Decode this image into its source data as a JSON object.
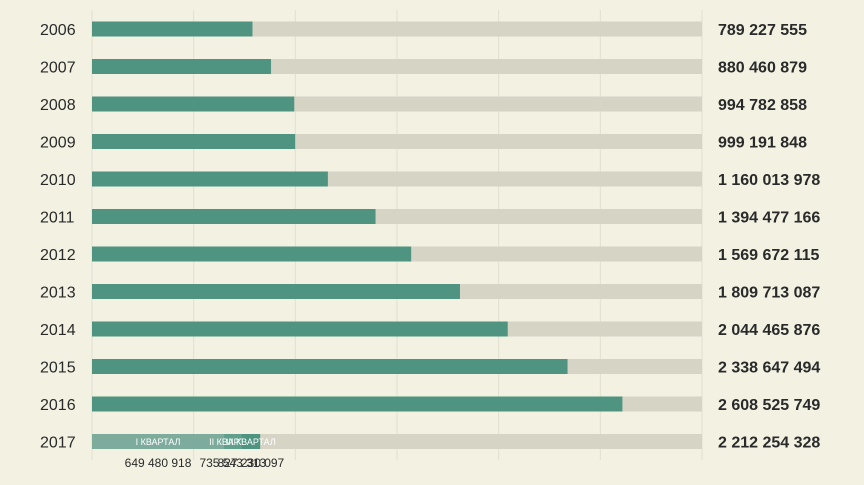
{
  "chart_data": {
    "type": "bar",
    "orientation": "horizontal",
    "title": "",
    "xlabel": "",
    "ylabel": "",
    "xlim": [
      0,
      3000000000
    ],
    "grid": true,
    "colors": {
      "bar": "#4e9480",
      "track": "#d6d4c5",
      "background": "#f3f1e2"
    },
    "categories": [
      "2006",
      "2007",
      "2008",
      "2009",
      "2010",
      "2011",
      "2012",
      "2013",
      "2014",
      "2015",
      "2016",
      "2017"
    ],
    "value_labels": [
      "789 227 555",
      "880 460 879",
      "994 782 858",
      "999 191 848",
      "1 160 013 978",
      "1 394 477 166",
      "1 569 672 115",
      "1 809 713 087",
      "2 044 465 876",
      "2 338 647 494",
      "2 608 525 749",
      "2 212 254 328"
    ],
    "values": [
      789227555,
      880460879,
      994782858,
      999191848,
      1160013978,
      1394477166,
      1569672115,
      1809713087,
      2044465876,
      2338647494,
      2608525749,
      2212254328
    ],
    "quarters_2017": {
      "labels": [
        "I КВАРТАЛ",
        "II КВАРТАЛ",
        "III КВАРТАЛ"
      ],
      "value_labels": [
        "649 480 918",
        "735 543 313",
        "827 230 097"
      ],
      "values": [
        649480918,
        735543313,
        827230097
      ],
      "colors": [
        "#7dab9c",
        "#5f9f8b",
        "#4e9480"
      ]
    }
  }
}
